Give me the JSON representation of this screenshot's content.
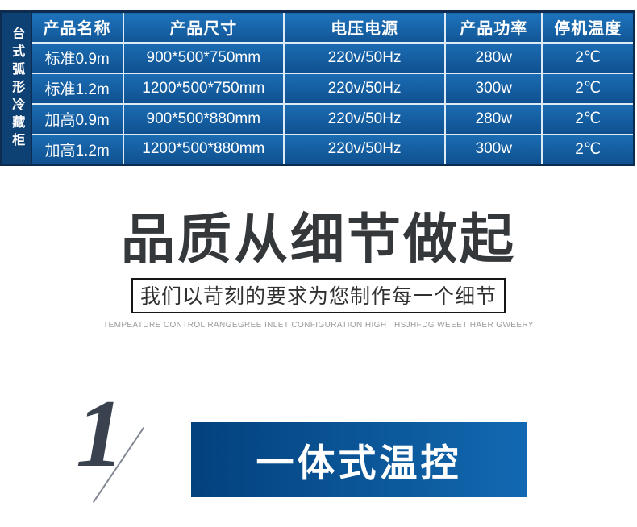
{
  "table": {
    "side_label": "台式弧形冷藏柜",
    "headers": [
      "产品名称",
      "产品尺寸",
      "电压电源",
      "产品功率",
      "停机温度"
    ],
    "rows": [
      {
        "name": "标准0.9m",
        "size": "900*500*750mm",
        "power_supply": "220v/50Hz",
        "power": "280w",
        "temp": "2℃"
      },
      {
        "name": "标准1.2m",
        "size": "1200*500*750mm",
        "power_supply": "220v/50Hz",
        "power": "300w",
        "temp": "2℃"
      },
      {
        "name": "加高0.9m",
        "size": "900*500*880mm",
        "power_supply": "220v/50Hz",
        "power": "280w",
        "temp": "2℃"
      },
      {
        "name": "加高1.2m",
        "size": "1200*500*880mm",
        "power_supply": "220v/50Hz",
        "power": "300w",
        "temp": "2℃"
      }
    ]
  },
  "quality_section": {
    "title": "品质从细节做起",
    "subtitle": "我们以苛刻的要求为您制作每一个细节",
    "caption_en": "TEMPEATURE  CONTROL RANGEGREE INLET CONFIGURATION HIGHT HSJHFDG WEEET HAER GWEERY"
  },
  "feature_section": {
    "number": "1",
    "label": "一体式温控"
  },
  "colors": {
    "table_border": "#0d2b4e",
    "sidebar_blue": "#0d4173",
    "cell_blue_top": "#1b6cb3",
    "cell_blue_bottom": "#0f5190",
    "title_charcoal": "#35383b",
    "numeral_slate": "#3a4250",
    "banner_blue_left": "#03417d",
    "banner_blue_right": "#1269b1"
  }
}
